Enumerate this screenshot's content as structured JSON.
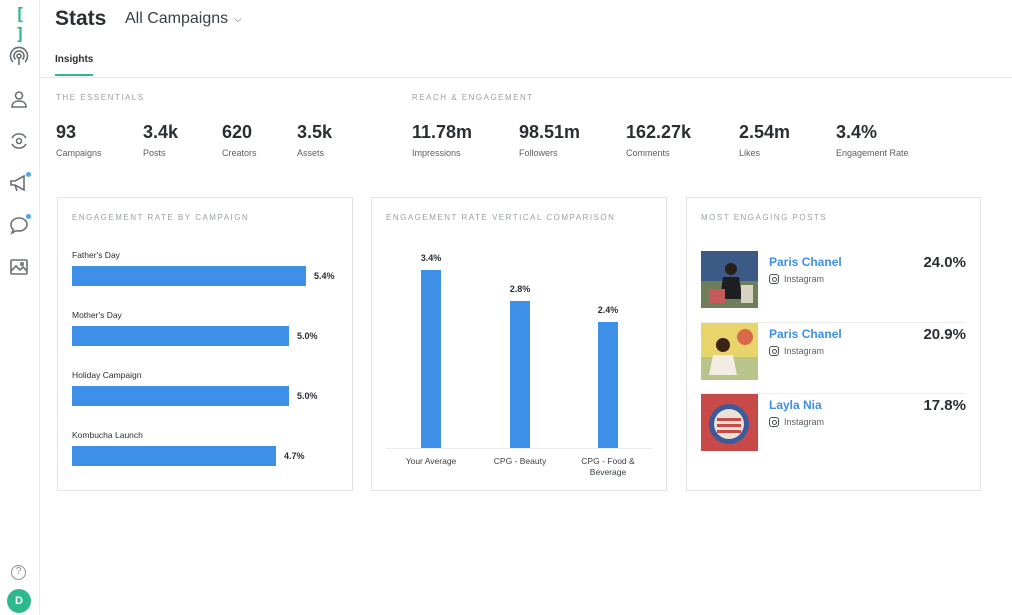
{
  "app": {
    "logo_text": "[ ]",
    "title": "Stats",
    "campaign_selector": "All Campaigns",
    "user_initial": "D",
    "help_glyph": "?"
  },
  "sidebar": {
    "icons": [
      {
        "name": "broadcast-icon",
        "badge": false
      },
      {
        "name": "user-icon",
        "badge": false
      },
      {
        "name": "discover-icon",
        "badge": false
      },
      {
        "name": "megaphone-icon",
        "badge": true
      },
      {
        "name": "chat-icon",
        "badge": true
      },
      {
        "name": "gallery-icon",
        "badge": false
      }
    ]
  },
  "tabs": [
    {
      "label": "Insights",
      "active": true
    }
  ],
  "essentials": {
    "label": "THE ESSENTIALS",
    "stats": [
      {
        "value": "93",
        "label": "Campaigns"
      },
      {
        "value": "3.4k",
        "label": "Posts"
      },
      {
        "value": "620",
        "label": "Creators"
      },
      {
        "value": "3.5k",
        "label": "Assets"
      }
    ]
  },
  "reach": {
    "label": "REACH & ENGAGEMENT",
    "stats": [
      {
        "value": "11.78m",
        "label": "Impressions"
      },
      {
        "value": "98.51m",
        "label": "Followers"
      },
      {
        "value": "162.27k",
        "label": "Comments"
      },
      {
        "value": "2.54m",
        "label": "Likes"
      },
      {
        "value": "3.4%",
        "label": "Engagement Rate"
      }
    ]
  },
  "engagement_by_campaign": {
    "title": "ENGAGEMENT RATE BY CAMPAIGN",
    "rows": [
      {
        "label": "Father's Day",
        "value": 5.4,
        "display": "5.4%"
      },
      {
        "label": "Mother's Day",
        "value": 5.0,
        "display": "5.0%"
      },
      {
        "label": "Holiday Campaign",
        "value": 5.0,
        "display": "5.0%"
      },
      {
        "label": "Kombucha Launch",
        "value": 4.7,
        "display": "4.7%"
      }
    ]
  },
  "vertical_comparison": {
    "title": "ENGAGEMENT RATE VERTICAL COMPARISON",
    "bars": [
      {
        "label": "Your Average",
        "value": 3.4,
        "display": "3.4%"
      },
      {
        "label": "CPG - Beauty",
        "value": 2.8,
        "display": "2.8%"
      },
      {
        "label": "CPG - Food & Beverage",
        "value": 2.4,
        "display": "2.4%"
      }
    ]
  },
  "most_engaging": {
    "title": "MOST ENGAGING POSTS",
    "posts": [
      {
        "name": "Paris Chanel",
        "platform": "Instagram",
        "rate": "24.0%"
      },
      {
        "name": "Paris Chanel",
        "platform": "Instagram",
        "rate": "20.9%"
      },
      {
        "name": "Layla Nia",
        "platform": "Instagram",
        "rate": "17.8%"
      }
    ]
  },
  "colors": {
    "accent": "#2fb98b",
    "bar": "#3d8fe8",
    "link": "#3d8fe8",
    "badge": "#4aa6f0"
  },
  "chart_data": [
    {
      "type": "bar",
      "orientation": "horizontal",
      "title": "ENGAGEMENT RATE BY CAMPAIGN",
      "categories": [
        "Father's Day",
        "Mother's Day",
        "Holiday Campaign",
        "Kombucha Launch"
      ],
      "values": [
        5.4,
        5.0,
        5.0,
        4.7
      ],
      "unit": "%",
      "xlabel": "",
      "ylabel": "",
      "grid": false
    },
    {
      "type": "bar",
      "orientation": "vertical",
      "title": "ENGAGEMENT RATE VERTICAL COMPARISON",
      "categories": [
        "Your Average",
        "CPG - Beauty",
        "CPG - Food & Beverage"
      ],
      "values": [
        3.4,
        2.8,
        2.4
      ],
      "unit": "%",
      "xlabel": "",
      "ylabel": "",
      "grid": false
    }
  ]
}
